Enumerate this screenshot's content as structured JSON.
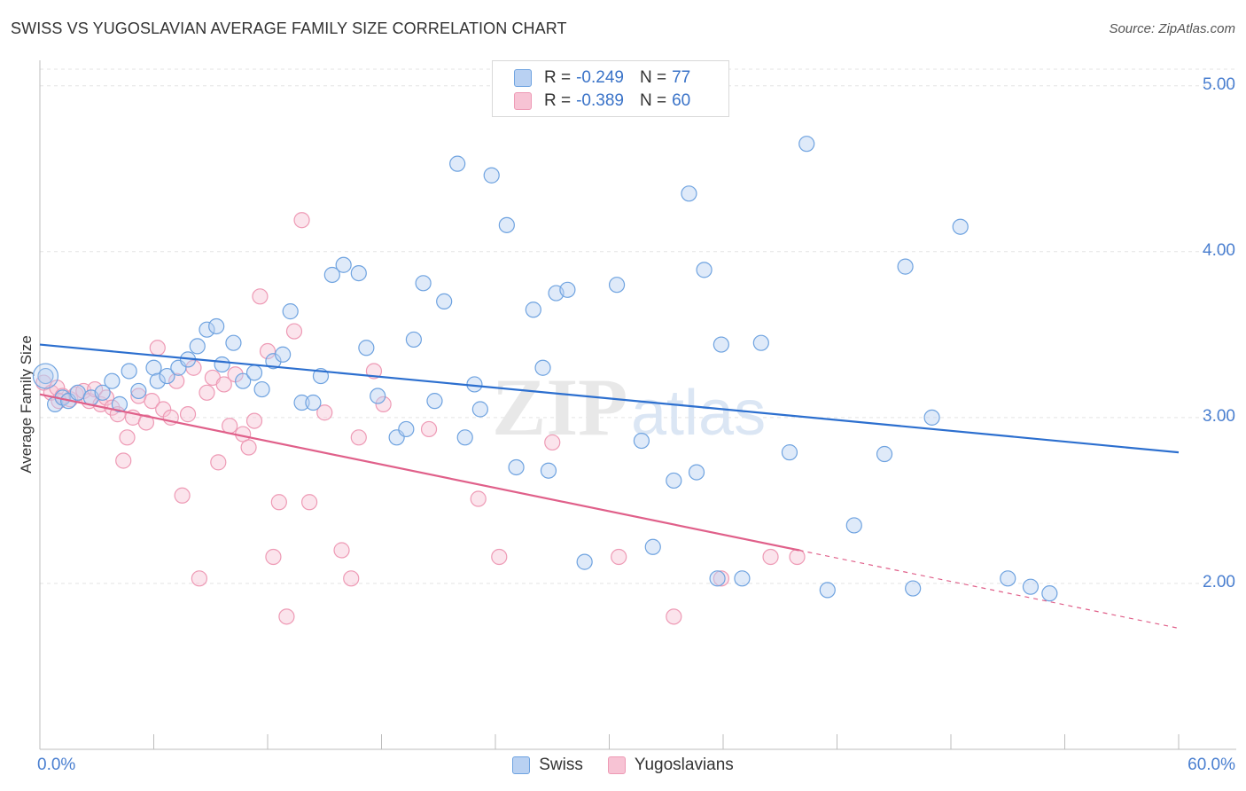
{
  "title": "SWISS VS YUGOSLAVIAN AVERAGE FAMILY SIZE CORRELATION CHART",
  "source": "Source: ZipAtlas.com",
  "watermark": {
    "bold": "ZIP",
    "light": "atlas"
  },
  "legend_top": [
    {
      "r_label": "R =",
      "r_value": "-0.249",
      "n_label": "N =",
      "n_value": "77"
    },
    {
      "r_label": "R =",
      "r_value": "-0.389",
      "n_label": "N =",
      "n_value": "60"
    }
  ],
  "legend_bottom": [
    "Swiss",
    "Yugoslavians"
  ],
  "colors": {
    "swiss": "#6fa3e0",
    "swiss_fill": "#b9d1f2",
    "swiss_line": "#2c6fcf",
    "yugo": "#ee9ab5",
    "yugo_fill": "#f7c3d4",
    "yugo_line": "#e0608a",
    "tick": "#4a7fd0"
  },
  "chart_data": {
    "type": "scatter",
    "xlabel": "",
    "ylabel": "Average Family Size",
    "xlim": [
      0,
      60
    ],
    "ylim": [
      1.0,
      5.1
    ],
    "x_tick_labels": [
      "0.0%",
      "60.0%"
    ],
    "y_ticks": [
      2.0,
      3.0,
      4.0,
      5.0
    ],
    "y_tick_labels": [
      "2.00",
      "3.00",
      "4.00",
      "5.00"
    ],
    "grid": true,
    "series": [
      {
        "name": "Swiss",
        "r": -0.249,
        "n": 77,
        "trend": {
          "x0": 0,
          "y0": 3.44,
          "x1": 60,
          "y1": 2.79
        },
        "points": [
          [
            0.3,
            3.25
          ],
          [
            0.8,
            3.08
          ],
          [
            1.2,
            3.12
          ],
          [
            1.5,
            3.1
          ],
          [
            2.0,
            3.15
          ],
          [
            2.7,
            3.12
          ],
          [
            3.3,
            3.15
          ],
          [
            3.8,
            3.22
          ],
          [
            4.2,
            3.08
          ],
          [
            4.7,
            3.28
          ],
          [
            5.2,
            3.16
          ],
          [
            6.0,
            3.3
          ],
          [
            6.2,
            3.22
          ],
          [
            6.7,
            3.25
          ],
          [
            7.3,
            3.3
          ],
          [
            7.8,
            3.35
          ],
          [
            8.3,
            3.43
          ],
          [
            8.8,
            3.53
          ],
          [
            9.3,
            3.55
          ],
          [
            9.6,
            3.32
          ],
          [
            10.2,
            3.45
          ],
          [
            10.7,
            3.22
          ],
          [
            11.3,
            3.27
          ],
          [
            11.7,
            3.17
          ],
          [
            12.3,
            3.34
          ],
          [
            12.8,
            3.38
          ],
          [
            13.2,
            3.64
          ],
          [
            13.8,
            3.09
          ],
          [
            14.4,
            3.09
          ],
          [
            14.8,
            3.25
          ],
          [
            15.4,
            3.86
          ],
          [
            16.0,
            3.92
          ],
          [
            16.8,
            3.87
          ],
          [
            17.2,
            3.42
          ],
          [
            17.8,
            3.13
          ],
          [
            18.8,
            2.88
          ],
          [
            19.3,
            2.93
          ],
          [
            19.7,
            3.47
          ],
          [
            20.2,
            3.81
          ],
          [
            20.8,
            3.1
          ],
          [
            21.3,
            3.7
          ],
          [
            22.0,
            4.53
          ],
          [
            22.4,
            2.88
          ],
          [
            22.9,
            3.2
          ],
          [
            23.2,
            3.05
          ],
          [
            23.8,
            4.46
          ],
          [
            24.6,
            4.16
          ],
          [
            25.1,
            2.7
          ],
          [
            26.0,
            3.65
          ],
          [
            26.5,
            3.3
          ],
          [
            26.8,
            2.68
          ],
          [
            27.2,
            3.75
          ],
          [
            27.8,
            3.77
          ],
          [
            28.7,
            2.13
          ],
          [
            30.4,
            3.8
          ],
          [
            31.7,
            2.86
          ],
          [
            32.3,
            2.22
          ],
          [
            33.4,
            2.62
          ],
          [
            34.2,
            4.35
          ],
          [
            34.6,
            2.67
          ],
          [
            35.0,
            3.89
          ],
          [
            35.7,
            2.03
          ],
          [
            35.9,
            3.44
          ],
          [
            37.0,
            2.03
          ],
          [
            38.0,
            3.45
          ],
          [
            39.5,
            2.79
          ],
          [
            40.4,
            4.65
          ],
          [
            41.5,
            1.96
          ],
          [
            42.9,
            2.35
          ],
          [
            44.5,
            2.78
          ],
          [
            45.6,
            3.91
          ],
          [
            46.0,
            1.97
          ],
          [
            47.0,
            3.0
          ],
          [
            48.5,
            4.15
          ],
          [
            51.0,
            2.03
          ],
          [
            52.2,
            1.98
          ],
          [
            53.2,
            1.94
          ]
        ]
      },
      {
        "name": "Yugoslavians",
        "r": -0.389,
        "n": 60,
        "trend": {
          "x0": 0,
          "y0": 3.14,
          "x1": 40,
          "y1": 2.2
        },
        "trend_extension": {
          "x0": 40,
          "y0": 2.2,
          "x1": 60,
          "y1": 1.73
        },
        "points": [
          [
            0.2,
            3.21
          ],
          [
            0.6,
            3.15
          ],
          [
            0.9,
            3.18
          ],
          [
            1.2,
            3.13
          ],
          [
            1.6,
            3.11
          ],
          [
            1.9,
            3.14
          ],
          [
            2.3,
            3.16
          ],
          [
            2.6,
            3.1
          ],
          [
            2.9,
            3.17
          ],
          [
            3.2,
            3.08
          ],
          [
            3.5,
            3.12
          ],
          [
            3.8,
            3.06
          ],
          [
            4.1,
            3.02
          ],
          [
            4.4,
            2.74
          ],
          [
            4.6,
            2.88
          ],
          [
            4.9,
            3.0
          ],
          [
            5.2,
            3.13
          ],
          [
            5.6,
            2.97
          ],
          [
            5.9,
            3.1
          ],
          [
            6.2,
            3.42
          ],
          [
            6.5,
            3.05
          ],
          [
            6.9,
            3.0
          ],
          [
            7.2,
            3.22
          ],
          [
            7.5,
            2.53
          ],
          [
            7.8,
            3.02
          ],
          [
            8.1,
            3.3
          ],
          [
            8.4,
            2.03
          ],
          [
            8.8,
            3.15
          ],
          [
            9.1,
            3.24
          ],
          [
            9.4,
            2.73
          ],
          [
            9.7,
            3.2
          ],
          [
            10.0,
            2.95
          ],
          [
            10.3,
            3.26
          ],
          [
            10.7,
            2.9
          ],
          [
            11.0,
            2.82
          ],
          [
            11.3,
            2.98
          ],
          [
            11.6,
            3.73
          ],
          [
            12.0,
            3.4
          ],
          [
            12.3,
            2.16
          ],
          [
            12.6,
            2.49
          ],
          [
            13.0,
            1.8
          ],
          [
            13.4,
            3.52
          ],
          [
            13.8,
            4.19
          ],
          [
            14.2,
            2.49
          ],
          [
            15.0,
            3.03
          ],
          [
            15.9,
            2.2
          ],
          [
            16.4,
            2.03
          ],
          [
            16.8,
            2.88
          ],
          [
            17.6,
            3.28
          ],
          [
            18.1,
            3.08
          ],
          [
            20.5,
            2.93
          ],
          [
            23.1,
            2.51
          ],
          [
            24.2,
            2.16
          ],
          [
            27.0,
            2.85
          ],
          [
            30.5,
            2.16
          ],
          [
            33.4,
            1.8
          ],
          [
            35.9,
            2.03
          ],
          [
            38.5,
            2.16
          ],
          [
            39.9,
            2.16
          ],
          [
            1.0,
            3.1
          ]
        ]
      }
    ]
  }
}
